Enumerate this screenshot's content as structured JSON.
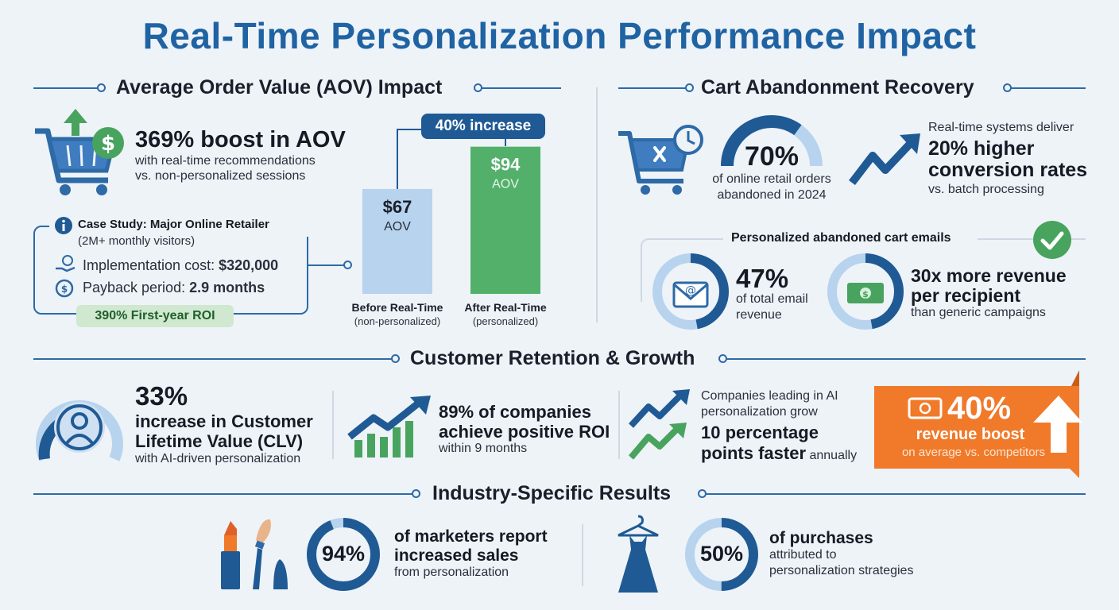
{
  "title": "Real-Time Personalization Performance Impact",
  "aov": {
    "heading": "Average Order Value (AOV) Impact",
    "boost": "369% boost in AOV",
    "boost_sub1": "with real-time recommendations",
    "boost_sub2": "vs. non-personalized sessions",
    "case_title": "Case Study: Major Online Retailer",
    "case_sub": "(2M+ monthly visitors)",
    "impl_label": "Implementation cost: ",
    "impl_value": "$320,000",
    "payback_label": "Payback period: ",
    "payback_value": "2.9 months",
    "roi": "390% First-year ROI",
    "increase_label": "40% increase"
  },
  "chart_data": {
    "type": "bar",
    "categories": [
      "Before Real-Time",
      "After Real-Time"
    ],
    "category_subs": [
      "(non-personalized)",
      "(personalized)"
    ],
    "values": [
      67,
      94
    ],
    "value_labels": [
      "$67",
      "$94"
    ],
    "unit_label": "AOV",
    "colors": [
      "#b7d3ee",
      "#53b06a"
    ],
    "ylim": [
      0,
      100
    ]
  },
  "cart": {
    "heading": "Cart Abandonment Recovery",
    "gauge_value": "70%",
    "gauge_fraction": 0.7,
    "gauge_sub1": "of online retail orders",
    "gauge_sub2": "abandoned in 2024",
    "rt_line1": "Real-time systems deliver",
    "rt_big1": "20% higher",
    "rt_big2": "conversion rates",
    "rt_sub": "vs. batch processing",
    "emails_heading": "Personalized abandoned cart emails",
    "email_pct": "47%",
    "email_fraction": 0.47,
    "email_sub1": "of total email",
    "email_sub2": "revenue",
    "rev_big1": "30x more revenue",
    "rev_big2": "per recipient",
    "rev_sub": "than generic campaigns"
  },
  "retention": {
    "heading": "Customer Retention & Growth",
    "clv_pct": "33%",
    "clv_line1": "increase in Customer",
    "clv_line2": "Lifetime Value (CLV)",
    "clv_sub": "with AI-driven personalization",
    "roi_big1": "89% of companies",
    "roi_big2": "achieve positive ROI",
    "roi_sub": "within 9 months",
    "grow_line1": "Companies leading in AI",
    "grow_line2": "personalization grow",
    "grow_big1": "10 percentage",
    "grow_big2": "points faster",
    "grow_tail": " annually",
    "rev_pct": "40%",
    "rev_label": "revenue boost",
    "rev_sub": "on average vs. competitors"
  },
  "industry": {
    "heading": "Industry-Specific Results",
    "beauty_pct": "94%",
    "beauty_fraction": 0.94,
    "beauty_big1": "of marketers report",
    "beauty_big2": "increased sales",
    "beauty_sub": "from personalization",
    "fashion_pct": "50%",
    "fashion_fraction": 0.5,
    "fashion_big": "of purchases",
    "fashion_sub1": "attributed to",
    "fashion_sub2": "personalization strategies"
  }
}
